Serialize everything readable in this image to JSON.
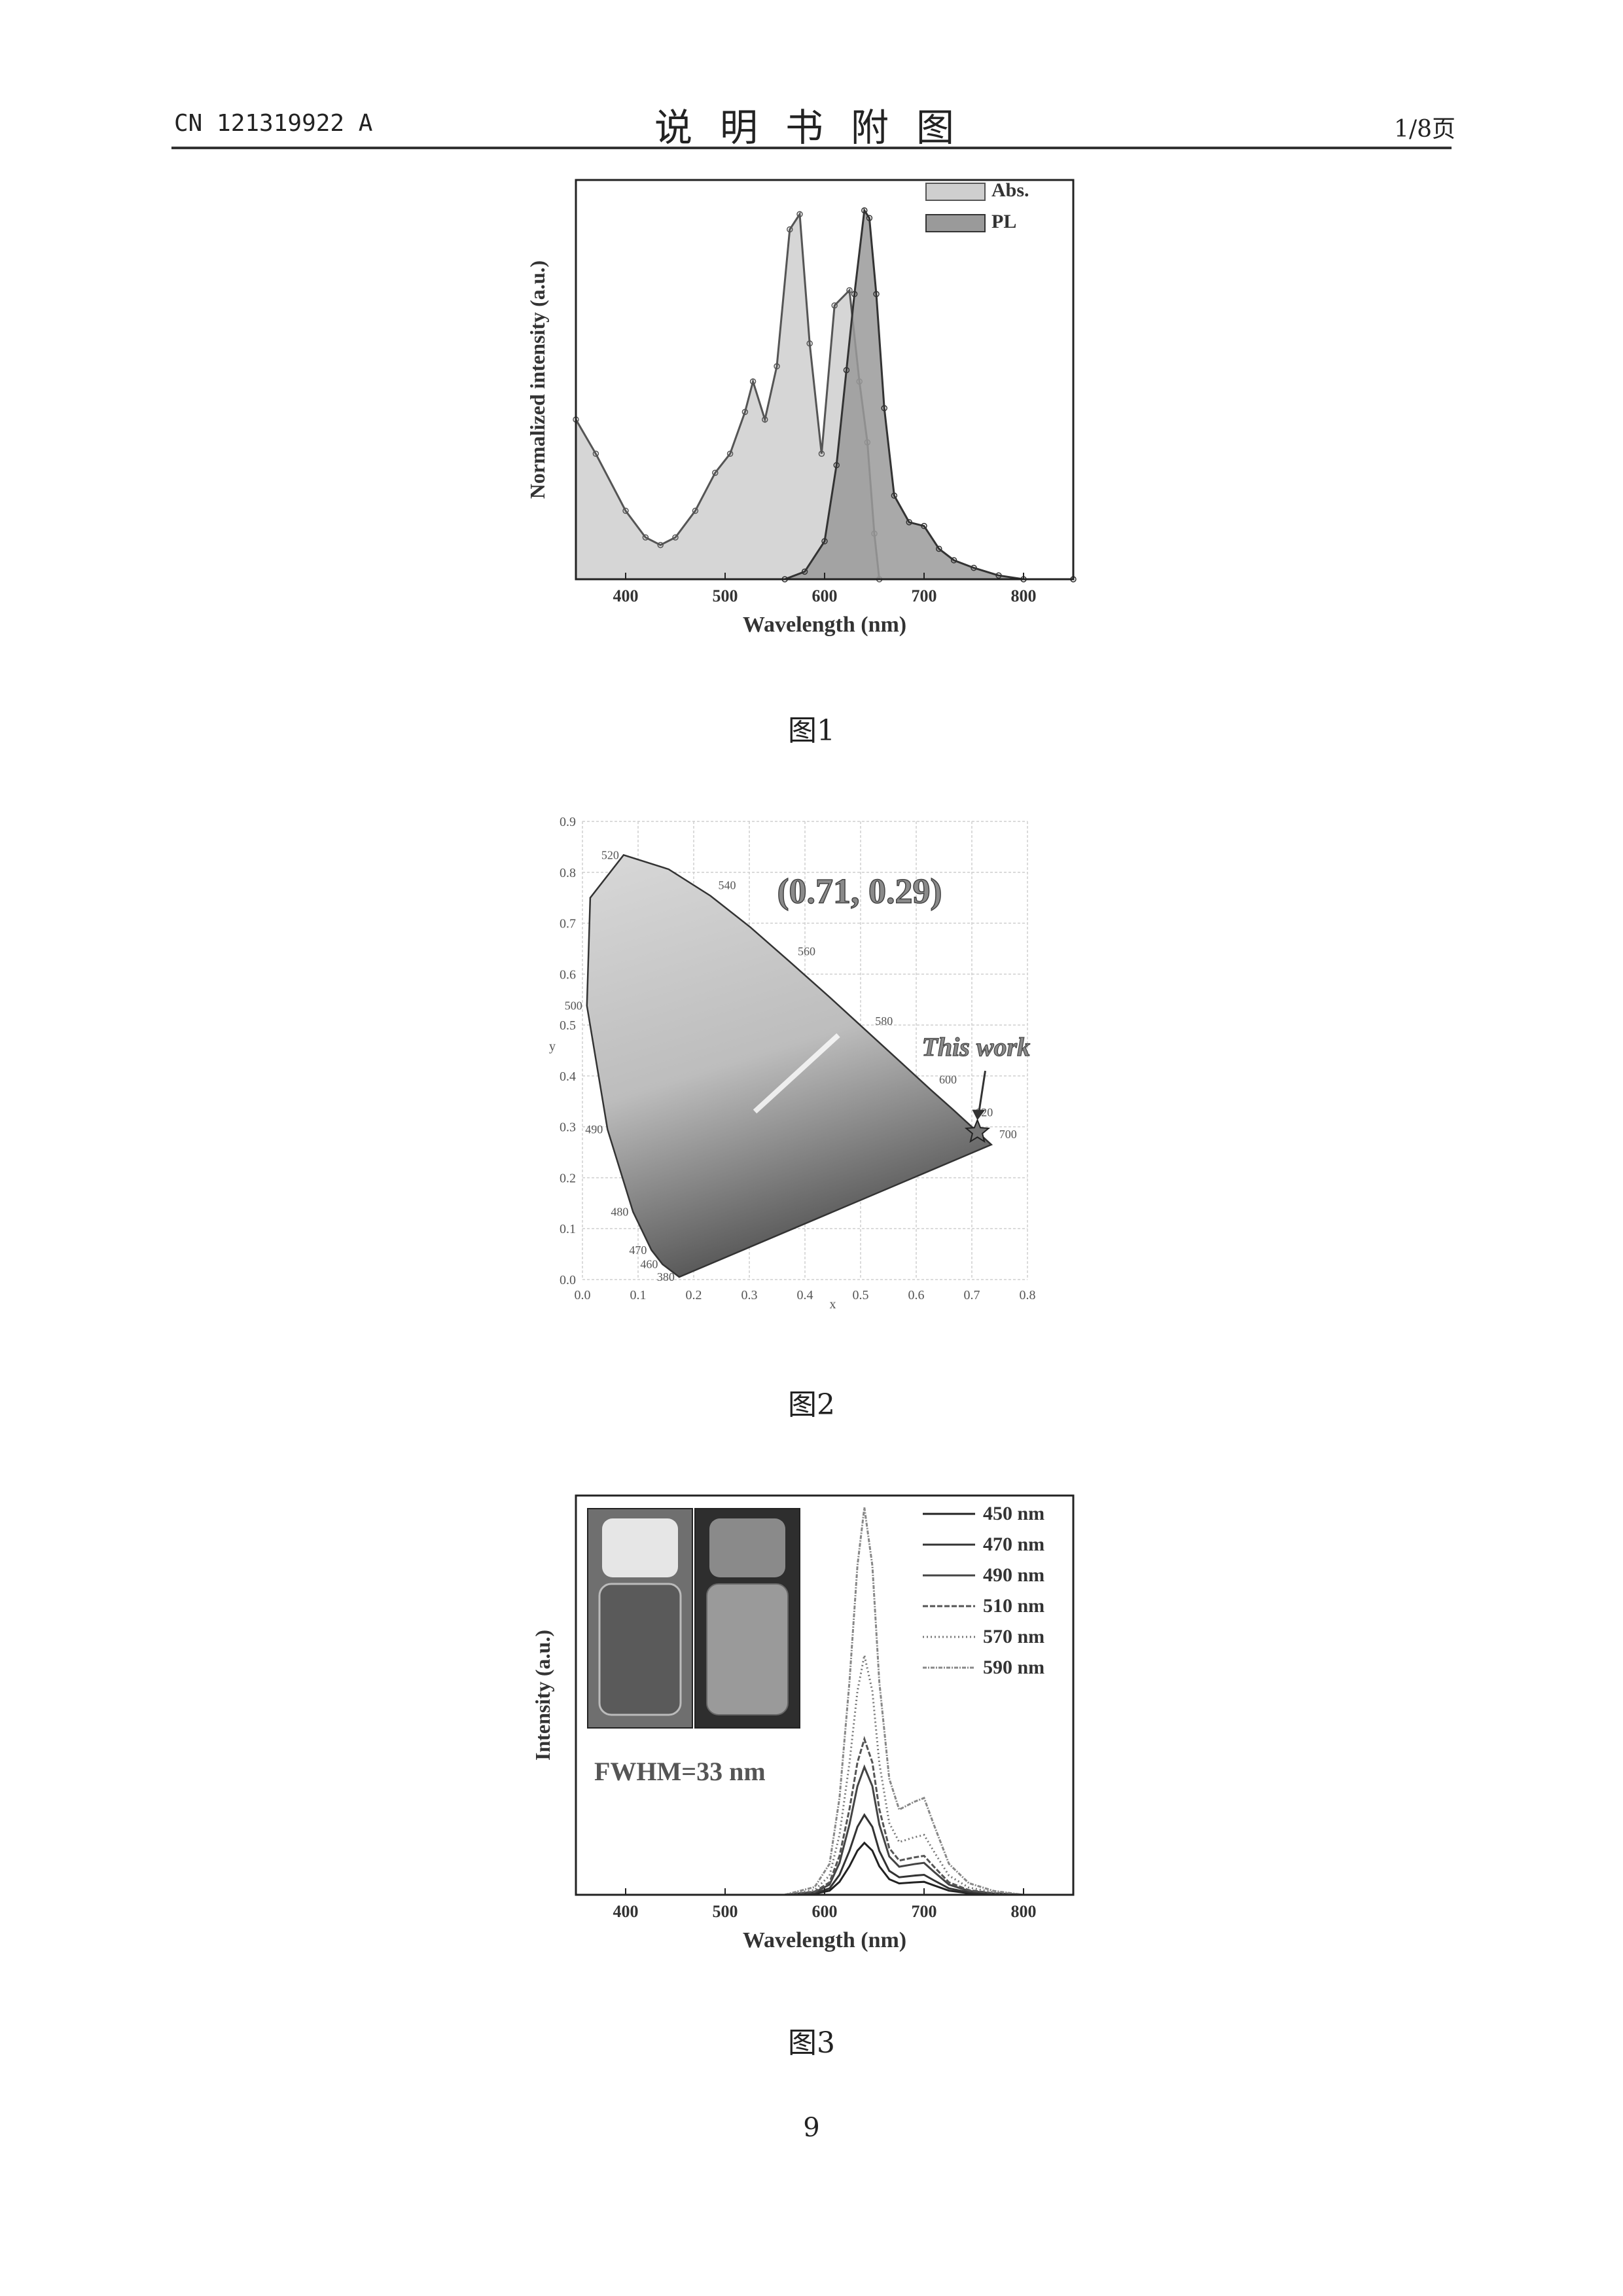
{
  "header": {
    "patent_number": "CN 121319922 A",
    "title": "说明书附图",
    "page": "1/8页"
  },
  "page_number": "9",
  "figures": [
    {
      "caption": "图1"
    },
    {
      "caption": "图2",
      "annotation": "(0.71, 0.29)",
      "arrow_label": "This work"
    },
    {
      "caption": "图3",
      "annotation": "FWHM=33 nm"
    }
  ],
  "chart_data": [
    {
      "type": "area",
      "xlabel": "Wavelength (nm)",
      "ylabel": "Normalized intensity (a.u.)",
      "xlim": [
        350,
        850
      ],
      "ylim": [
        0,
        1.05
      ],
      "xticks": [
        400,
        500,
        600,
        700,
        800
      ],
      "legend_position": "top-right",
      "series": [
        {
          "name": "Abs.",
          "x": [
            350,
            370,
            400,
            420,
            435,
            450,
            470,
            490,
            505,
            520,
            528,
            540,
            552,
            565,
            575,
            585,
            597,
            610,
            625,
            635,
            643,
            650,
            655
          ],
          "y": [
            0.42,
            0.33,
            0.18,
            0.11,
            0.09,
            0.11,
            0.18,
            0.28,
            0.33,
            0.44,
            0.52,
            0.42,
            0.56,
            0.92,
            0.96,
            0.62,
            0.33,
            0.72,
            0.76,
            0.52,
            0.36,
            0.12,
            0.0
          ]
        },
        {
          "name": "PL",
          "x": [
            560,
            580,
            600,
            612,
            622,
            630,
            640,
            645,
            652,
            660,
            670,
            685,
            700,
            715,
            730,
            750,
            775,
            800,
            850
          ],
          "y": [
            0.0,
            0.02,
            0.1,
            0.3,
            0.55,
            0.75,
            0.97,
            0.95,
            0.75,
            0.45,
            0.22,
            0.15,
            0.14,
            0.08,
            0.05,
            0.03,
            0.01,
            0.0,
            0.0
          ]
        }
      ]
    },
    {
      "type": "scatter",
      "xlabel": "x",
      "ylabel": "y",
      "xlim": [
        0,
        0.8
      ],
      "ylim": [
        0,
        0.9
      ],
      "xticks": [
        0.0,
        0.1,
        0.2,
        0.3,
        0.4,
        0.5,
        0.6,
        0.7,
        0.8
      ],
      "yticks": [
        0.0,
        0.1,
        0.2,
        0.3,
        0.4,
        0.5,
        0.6,
        0.7,
        0.8,
        0.9
      ],
      "grid": true,
      "locus": [
        [
          0.174,
          0.005
        ],
        [
          0.144,
          0.03
        ],
        [
          0.124,
          0.058
        ],
        [
          0.091,
          0.133
        ],
        [
          0.045,
          0.295
        ],
        [
          0.008,
          0.538
        ],
        [
          0.014,
          0.75
        ],
        [
          0.074,
          0.834
        ],
        [
          0.155,
          0.806
        ],
        [
          0.23,
          0.754
        ],
        [
          0.302,
          0.692
        ],
        [
          0.373,
          0.624
        ],
        [
          0.444,
          0.555
        ],
        [
          0.512,
          0.487
        ],
        [
          0.575,
          0.424
        ],
        [
          0.627,
          0.372
        ],
        [
          0.666,
          0.334
        ],
        [
          0.692,
          0.308
        ],
        [
          0.735,
          0.265
        ]
      ],
      "wavelength_labels": [
        {
          "text": "520",
          "x": 0.074,
          "y": 0.834
        },
        {
          "text": "540",
          "x": 0.23,
          "y": 0.754
        },
        {
          "text": "560",
          "x": 0.373,
          "y": 0.624
        },
        {
          "text": "580",
          "x": 0.512,
          "y": 0.487
        },
        {
          "text": "600",
          "x": 0.627,
          "y": 0.372
        },
        {
          "text": "620",
          "x": 0.692,
          "y": 0.308
        },
        {
          "text": "700",
          "x": 0.735,
          "y": 0.265
        },
        {
          "text": "500",
          "x": 0.008,
          "y": 0.538
        },
        {
          "text": "490",
          "x": 0.045,
          "y": 0.295
        },
        {
          "text": "480",
          "x": 0.091,
          "y": 0.133
        },
        {
          "text": "470",
          "x": 0.124,
          "y": 0.058
        },
        {
          "text": "460",
          "x": 0.144,
          "y": 0.03
        },
        {
          "text": "380",
          "x": 0.174,
          "y": 0.005
        }
      ],
      "point": {
        "x": 0.71,
        "y": 0.29
      }
    },
    {
      "type": "line",
      "xlabel": "Wavelength (nm)",
      "ylabel": "Intensity (a.u.)",
      "xlim": [
        350,
        850
      ],
      "ylim": [
        0,
        1.0
      ],
      "xticks": [
        400,
        500,
        600,
        700,
        800
      ],
      "legend_position": "top-right",
      "x": [
        560,
        590,
        605,
        615,
        625,
        633,
        640,
        648,
        655,
        665,
        675,
        690,
        700,
        710,
        725,
        745,
        770,
        800,
        850
      ],
      "series": [
        {
          "name": "450 nm",
          "peak": 0.13
        },
        {
          "name": "470 nm",
          "peak": 0.2
        },
        {
          "name": "490 nm",
          "peak": 0.32
        },
        {
          "name": "510 nm",
          "peak": 0.39
        },
        {
          "name": "570 nm",
          "peak": 0.6
        },
        {
          "name": "590 nm",
          "peak": 0.97
        }
      ],
      "shape": [
        0.0,
        0.02,
        0.08,
        0.25,
        0.55,
        0.85,
        1.0,
        0.85,
        0.55,
        0.3,
        0.22,
        0.24,
        0.25,
        0.18,
        0.08,
        0.03,
        0.01,
        0.0,
        0.0
      ]
    }
  ]
}
